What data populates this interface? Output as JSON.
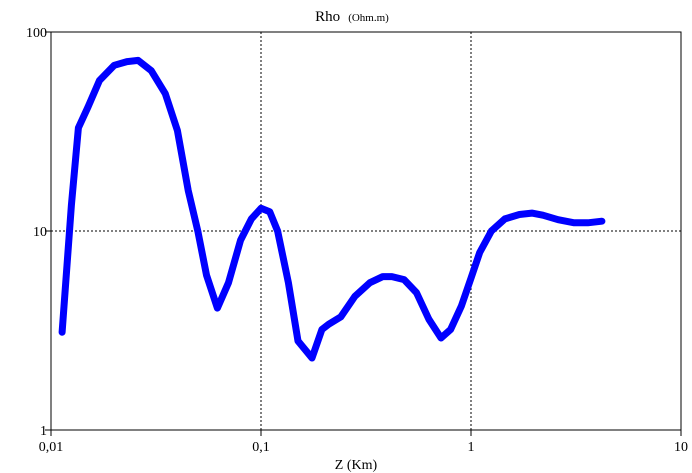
{
  "chart_data": {
    "type": "line",
    "title": "Rho",
    "title_unit": "(Ohm.m)",
    "xlabel": "Z (Km)",
    "ylabel": "",
    "x_scale": "log",
    "y_scale": "log",
    "xlim": [
      0.01,
      10
    ],
    "ylim": [
      1,
      100
    ],
    "x_ticks": [
      {
        "value": 0.01,
        "label": "0,01"
      },
      {
        "value": 0.1,
        "label": "0,1"
      },
      {
        "value": 1,
        "label": "1"
      },
      {
        "value": 10,
        "label": "10"
      }
    ],
    "y_ticks": [
      {
        "value": 1,
        "label": "1"
      },
      {
        "value": 10,
        "label": "10"
      },
      {
        "value": 100,
        "label": "100"
      }
    ],
    "grid": true,
    "series": [
      {
        "color": "#0000ff",
        "x": [
          0.0113,
          0.0125,
          0.0135,
          0.015,
          0.017,
          0.02,
          0.023,
          0.026,
          0.03,
          0.035,
          0.04,
          0.045,
          0.05,
          0.055,
          0.062,
          0.07,
          0.08,
          0.09,
          0.1,
          0.11,
          0.12,
          0.135,
          0.15,
          0.175,
          0.195,
          0.21,
          0.24,
          0.28,
          0.33,
          0.38,
          0.42,
          0.48,
          0.55,
          0.63,
          0.72,
          0.8,
          0.9,
          1.0,
          1.1,
          1.25,
          1.45,
          1.7,
          1.95,
          2.2,
          2.6,
          3.1,
          3.6,
          4.2
        ],
        "y": [
          3.1,
          13.5,
          33.0,
          42.0,
          57.0,
          68.0,
          71.0,
          72.0,
          64.0,
          49.0,
          32.0,
          16.0,
          10.0,
          6.0,
          4.1,
          5.5,
          9.0,
          11.5,
          13.0,
          12.5,
          10.0,
          5.5,
          2.8,
          2.3,
          3.2,
          3.4,
          3.7,
          4.7,
          5.5,
          5.9,
          5.9,
          5.7,
          4.9,
          3.6,
          2.9,
          3.2,
          4.2,
          5.8,
          7.8,
          10.0,
          11.5,
          12.1,
          12.3,
          12.0,
          11.4,
          11.0,
          11.0,
          11.2
        ]
      }
    ]
  }
}
